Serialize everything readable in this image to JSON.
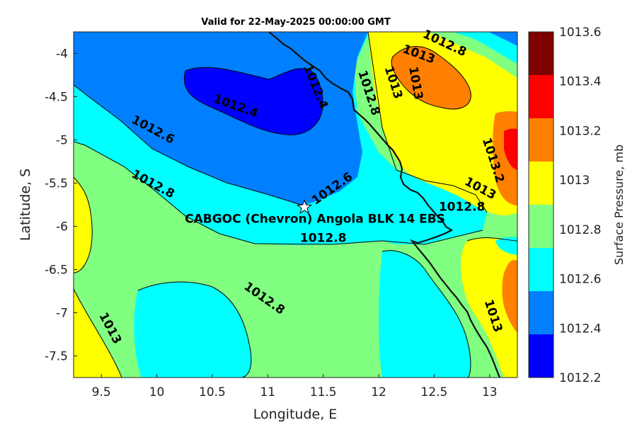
{
  "title": "Valid for 22-May-2025 00:00:00 GMT",
  "axes": {
    "xlabel": "Longitude, E",
    "ylabel": "Latitude, S",
    "x_ticks": [
      "9.5",
      "10",
      "10.5",
      "11",
      "11.5",
      "12",
      "12.5",
      "13"
    ],
    "y_ticks": [
      "-4",
      "-4.5",
      "-5",
      "-5.5",
      "-6",
      "-6.5",
      "-7",
      "-7.5"
    ],
    "xlim": [
      9.25,
      13.25
    ],
    "ylim": [
      -7.75,
      -3.75
    ]
  },
  "colorbar": {
    "label": "Surface Pressure, mb",
    "ticks": [
      "1013.6",
      "1013.4",
      "1013.2",
      "1013",
      "1012.8",
      "1012.6",
      "1012.4",
      "1012.2"
    ],
    "bands": [
      {
        "range": "1013.4-1013.6",
        "color": "#7f0000"
      },
      {
        "range": "1013.2-1013.4",
        "color": "#ff0000"
      },
      {
        "range": "1013.0-1013.2",
        "color": "#ff8000"
      },
      {
        "range": "1012.8-1013.0",
        "color": "#ffff00"
      },
      {
        "range": "1012.6-1012.8",
        "color": "#80ff80"
      },
      {
        "range": "1012.4-1012.6",
        "color": "#00ffff"
      },
      {
        "range": "1012.2-1012.4",
        "color": "#0080ff"
      },
      {
        "range": "1012.0-1012.2",
        "color": "#0000ff"
      }
    ]
  },
  "contour_labels": [
    {
      "text": "1012.4",
      "lon": 10.7,
      "lat": -4.65
    },
    {
      "text": "1012.4",
      "lon": 11.4,
      "lat": -4.4
    },
    {
      "text": "1012.6",
      "lon": 9.95,
      "lat": -4.92
    },
    {
      "text": "1012.6",
      "lon": 11.6,
      "lat": -5.6
    },
    {
      "text": "1012.8",
      "lon": 9.95,
      "lat": -5.55
    },
    {
      "text": "1012.8",
      "lon": 11.5,
      "lat": -6.18
    },
    {
      "text": "1012.8",
      "lon": 10.95,
      "lat": -6.87
    },
    {
      "text": "1012.8",
      "lon": 11.88,
      "lat": -4.47
    },
    {
      "text": "1012.8",
      "lon": 12.58,
      "lat": -3.92
    },
    {
      "text": "1012.8",
      "lon": 12.75,
      "lat": -5.82
    },
    {
      "text": "1013",
      "lon": 12.1,
      "lat": -4.35
    },
    {
      "text": "1013",
      "lon": 12.35,
      "lat": -4.05
    },
    {
      "text": "1013",
      "lon": 12.3,
      "lat": -4.35
    },
    {
      "text": "1013",
      "lon": 12.9,
      "lat": -5.6
    },
    {
      "text": "1013",
      "lon": 9.55,
      "lat": -7.2
    },
    {
      "text": "1013",
      "lon": 13.0,
      "lat": -7.05
    },
    {
      "text": "1013.2",
      "lon": 13.0,
      "lat": -5.25
    }
  ],
  "site": {
    "name": "CABGOC (Chevron)  Angola BLK 14  EBS",
    "lon": 11.33,
    "lat": -5.78,
    "marker": "white-star"
  }
}
